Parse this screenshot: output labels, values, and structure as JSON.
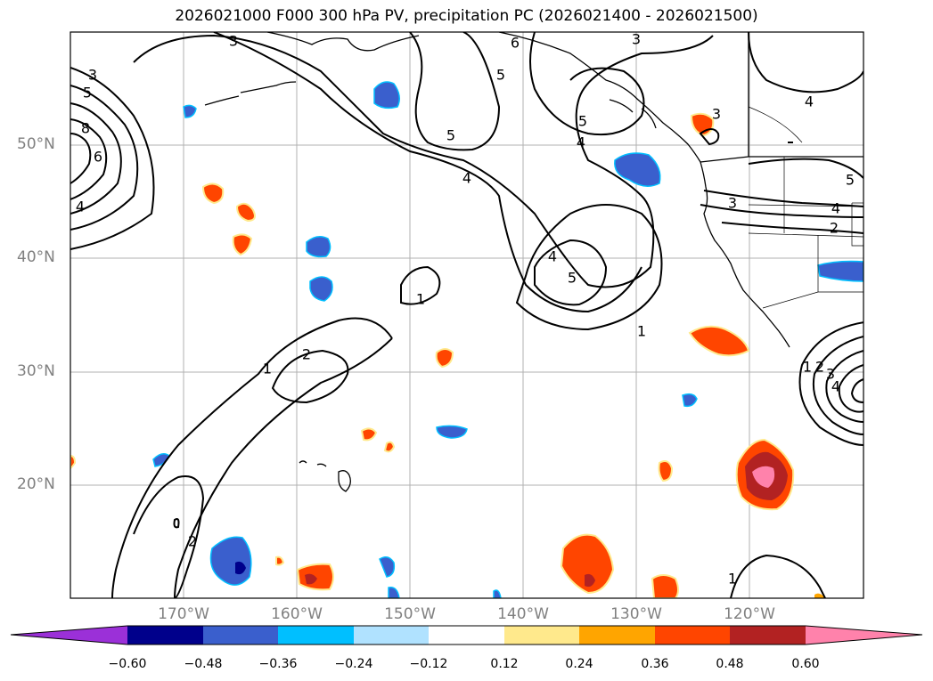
{
  "title": "2026021000 F000 300 hPa PV, precipitation PC (2026021400 - 2026021500)",
  "map": {
    "projection": "PlateCarree",
    "lon_range": [
      -180,
      -110
    ],
    "lat_range": [
      10,
      60
    ],
    "lat_ticks": [
      "50°N",
      "40°N",
      "30°N",
      "20°N"
    ],
    "lon_ticks": [
      "170°W",
      "160°W",
      "150°W",
      "140°W",
      "130°W",
      "120°W"
    ],
    "gridlines": true
  },
  "pv_contour_labels": [
    "3",
    "5",
    "8",
    "6",
    "4",
    "3",
    "6",
    "5",
    "3",
    "5",
    "4",
    "5",
    "4",
    "3",
    "4",
    "5",
    "3",
    "2",
    "4",
    "1",
    "4",
    "5",
    "1",
    "1",
    "2",
    "2",
    "1",
    "1",
    "2",
    "3",
    "4"
  ],
  "colorbar": {
    "ticks": [
      "−0.60",
      "−0.48",
      "−0.36",
      "−0.24",
      "−0.12",
      "0.12",
      "0.24",
      "0.36",
      "0.48",
      "0.60"
    ],
    "colors": [
      "#9b30d8",
      "#00008b",
      "#3a5fcd",
      "#00bfff",
      "#b0e2ff",
      "#ffffff",
      "#ffe98c",
      "#ffa500",
      "#ff4500",
      "#b22222",
      "#ff82ab"
    ],
    "extend": "both"
  }
}
